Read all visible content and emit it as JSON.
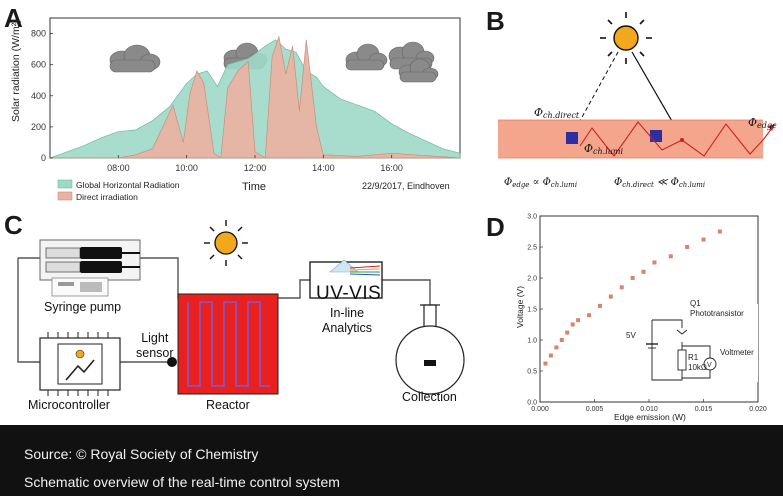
{
  "panels": {
    "a": "A",
    "b": "B",
    "c": "C",
    "d": "D"
  },
  "panel_a": {
    "ylabel": "Solar radiation (W/m²)",
    "xlabel": "Time",
    "yticks": [
      "0",
      "200",
      "400",
      "600",
      "800"
    ],
    "xticks": [
      "08:00",
      "10:00",
      "12:00",
      "14:00",
      "16:00"
    ],
    "legend": [
      "Global Horizontal Radiation",
      "Direct irradiation"
    ],
    "note": "22/9/2017, Eindhoven",
    "colors": {
      "global": "#9fd8c6",
      "direct": "#e8b3a3"
    }
  },
  "panel_b": {
    "phi_direct": "Φch.direct",
    "phi_lumi": "Φch.lumi",
    "phi_edge": "Φedge",
    "rel1": "Φedge ∝ Φch.lumi",
    "rel2": "Φch.direct ≪ Φch.lumi"
  },
  "panel_c": {
    "syringe_pump": "Syringe pump",
    "light_sensor": "Light\nsensor",
    "microcontroller": "Microcontroller",
    "reactor": "Reactor",
    "uvvis": "UV-VIS",
    "inline": "In-line\nAnalytics",
    "collection": "Collection"
  },
  "panel_d": {
    "xlabel": "Edge emission (W)",
    "ylabel": "Voltage (V)",
    "circuit": {
      "q1": "Q1",
      "q1_label": "Phototransistor",
      "v5": "5V",
      "r1": "R1",
      "r1_value": "10kΩ",
      "voltmeter": "Voltmeter",
      "v_symbol": "V"
    }
  },
  "chart_data": [
    {
      "type": "area",
      "xlabel": "Time",
      "ylabel": "Solar radiation (W/m²)",
      "xlim": [
        6.0,
        18.0
      ],
      "ylim": [
        0,
        900
      ],
      "yticks": [
        0,
        200,
        400,
        600,
        800
      ],
      "xticks": [
        "08:00",
        "10:00",
        "12:00",
        "14:00",
        "16:00"
      ],
      "legend_position": "bottom-left",
      "series": [
        {
          "name": "Global Horizontal Radiation",
          "x": [
            6.0,
            6.5,
            7.0,
            7.5,
            8.0,
            8.5,
            9.0,
            9.5,
            9.8,
            10.0,
            10.3,
            10.6,
            10.9,
            11.2,
            11.5,
            11.8,
            12.0,
            12.3,
            12.6,
            12.9,
            13.2,
            13.5,
            13.8,
            14.0,
            14.5,
            15.0,
            15.5,
            16.0,
            16.5,
            17.0,
            17.5,
            18.0
          ],
          "y": [
            0,
            40,
            80,
            130,
            170,
            180,
            240,
            330,
            420,
            480,
            540,
            560,
            460,
            600,
            620,
            640,
            670,
            720,
            760,
            700,
            680,
            560,
            520,
            460,
            380,
            340,
            300,
            220,
            160,
            110,
            60,
            30
          ]
        },
        {
          "name": "Direct irradiation",
          "x": [
            6.0,
            8.0,
            8.5,
            9.0,
            9.3,
            9.6,
            9.9,
            10.1,
            10.3,
            10.5,
            10.8,
            11.0,
            11.2,
            11.5,
            11.8,
            12.0,
            12.3,
            12.5,
            12.7,
            12.9,
            13.1,
            13.3,
            13.5,
            13.8,
            14.0,
            15.0,
            16.0,
            18.0
          ],
          "y": [
            0,
            0,
            20,
            60,
            200,
            340,
            100,
            420,
            560,
            480,
            30,
            0,
            450,
            560,
            620,
            40,
            0,
            650,
            780,
            540,
            720,
            300,
            760,
            200,
            20,
            10,
            30,
            0
          ]
        }
      ],
      "annotation": "22/9/2017, Eindhoven"
    },
    {
      "type": "scatter",
      "xlabel": "Edge emission (W)",
      "ylabel": "Voltage (V)",
      "xlim": [
        0.0,
        0.02
      ],
      "ylim": [
        0.0,
        3.0
      ],
      "xticks": [
        "0.000",
        "0.005",
        "0.010",
        "0.015",
        "0.020"
      ],
      "yticks": [
        "0.0",
        "0.5",
        "1.0",
        "1.5",
        "2.0",
        "2.5",
        "3.0"
      ],
      "x": [
        0.0005,
        0.001,
        0.0015,
        0.002,
        0.0025,
        0.003,
        0.0035,
        0.0045,
        0.0055,
        0.0065,
        0.0075,
        0.0085,
        0.0095,
        0.0105,
        0.012,
        0.0135,
        0.015,
        0.0165
      ],
      "y": [
        0.62,
        0.75,
        0.88,
        1.0,
        1.12,
        1.25,
        1.32,
        1.4,
        1.55,
        1.7,
        1.85,
        2.0,
        2.1,
        2.25,
        2.35,
        2.5,
        2.62,
        2.75
      ],
      "color": "#d9826d"
    }
  ],
  "caption": {
    "source": "Source: © Royal Society of Chemistry",
    "text": "Schematic overview of the real-time control system"
  }
}
